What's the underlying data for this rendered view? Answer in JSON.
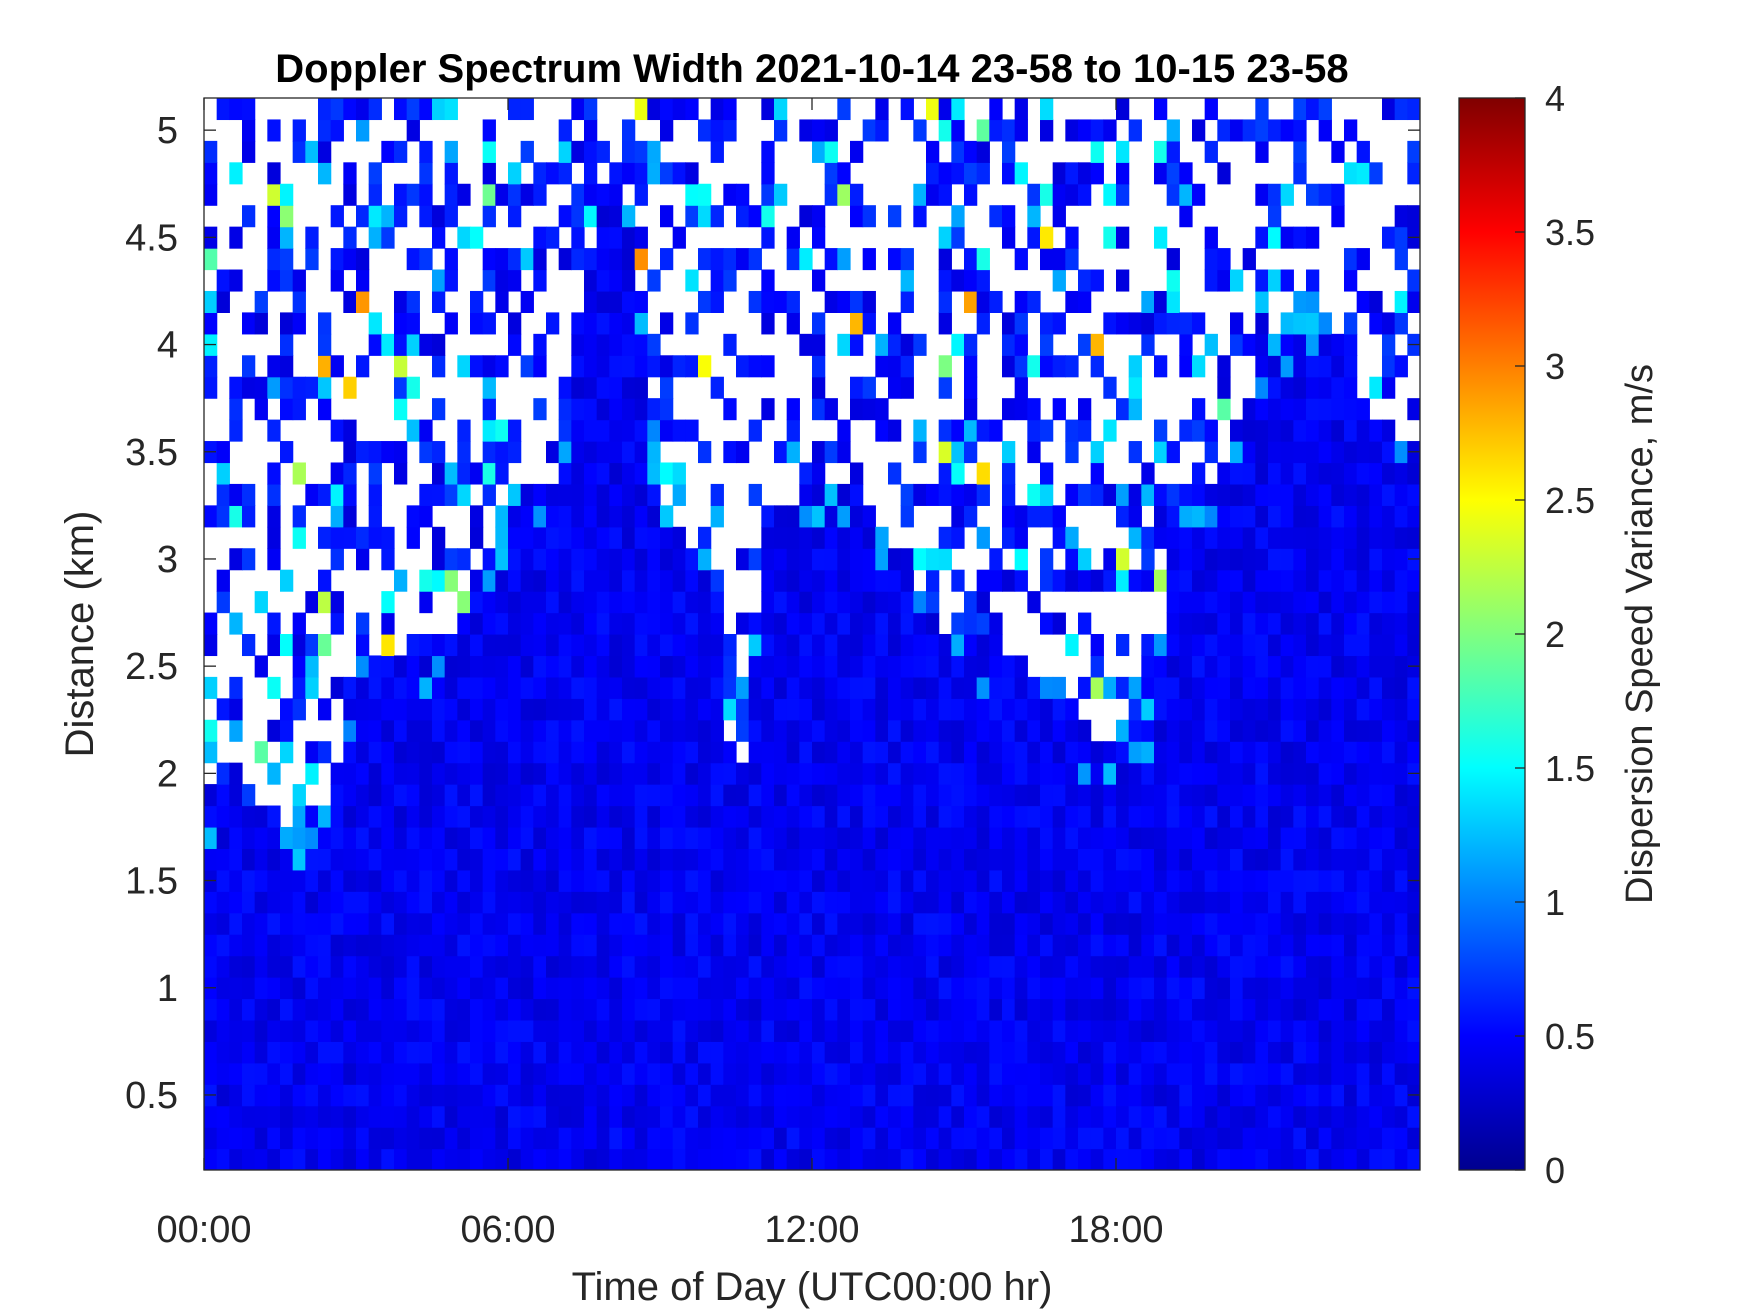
{
  "chart_data": {
    "type": "heatmap",
    "title": "Doppler Spectrum Width 2021-10-14 23-58 to 10-15 23-58",
    "xlabel": "Time of Day (UTC00:00 hr)",
    "ylabel": "Distance (km)",
    "colorbar_label": "Dispersion Speed Variance, m/s",
    "colormap": "jet",
    "xlim_hours": [
      0,
      24
    ],
    "ylim_km": [
      0.15,
      5.15
    ],
    "clim": [
      0,
      4
    ],
    "x_ticks": [
      {
        "value": 0,
        "label": "00:00"
      },
      {
        "value": 6,
        "label": "06:00"
      },
      {
        "value": 12,
        "label": "12:00"
      },
      {
        "value": 18,
        "label": "18:00"
      }
    ],
    "y_ticks": [
      {
        "value": 0.5,
        "label": "0.5"
      },
      {
        "value": 1,
        "label": "1"
      },
      {
        "value": 1.5,
        "label": "1.5"
      },
      {
        "value": 2,
        "label": "2"
      },
      {
        "value": 2.5,
        "label": "2.5"
      },
      {
        "value": 3,
        "label": "3"
      },
      {
        "value": 3.5,
        "label": "3.5"
      },
      {
        "value": 4,
        "label": "4"
      },
      {
        "value": 4.5,
        "label": "4.5"
      },
      {
        "value": 5,
        "label": "5"
      }
    ],
    "colorbar_ticks": [
      {
        "value": 0,
        "label": "0"
      },
      {
        "value": 0.5,
        "label": "0.5"
      },
      {
        "value": 1,
        "label": "1"
      },
      {
        "value": 1.5,
        "label": "1.5"
      },
      {
        "value": 2,
        "label": "2"
      },
      {
        "value": 2.5,
        "label": "2.5"
      },
      {
        "value": 3,
        "label": "3"
      },
      {
        "value": 3.5,
        "label": "3.5"
      },
      {
        "value": 4,
        "label": "4"
      }
    ],
    "time_grid_hours_step": 0.25,
    "range_grid_km_step": 0.1,
    "signal_top_km_by_hour": [
      [
        0,
        1.95
      ],
      [
        0.5,
        1.95
      ],
      [
        1,
        1.85
      ],
      [
        1.5,
        1.8
      ],
      [
        2,
        1.7
      ],
      [
        2.5,
        1.95
      ],
      [
        3,
        2.5
      ],
      [
        4,
        2.55
      ],
      [
        5,
        2.7
      ],
      [
        6,
        3.3
      ],
      [
        7,
        3.4
      ],
      [
        8,
        4.95
      ],
      [
        8.5,
        4.6
      ],
      [
        9,
        3.3
      ],
      [
        9.5,
        3.1
      ],
      [
        10,
        3.1
      ],
      [
        10.3,
        2.4
      ],
      [
        10.5,
        1.7
      ],
      [
        10.7,
        2.3
      ],
      [
        11,
        3.1
      ],
      [
        11.5,
        3.25
      ],
      [
        12,
        3.45
      ],
      [
        13,
        3.3
      ],
      [
        14,
        2.85
      ],
      [
        15,
        2.6
      ],
      [
        16,
        2.5
      ],
      [
        17,
        2.4
      ],
      [
        17.5,
        2.2
      ],
      [
        18,
        2.2
      ],
      [
        18.8,
        2.35
      ],
      [
        19,
        3.25
      ],
      [
        20,
        3.4
      ],
      [
        21,
        4.0
      ],
      [
        21.8,
        4.25
      ],
      [
        22.5,
        4.0
      ],
      [
        23,
        3.7
      ],
      [
        24,
        3.5
      ]
    ],
    "typical_width_m_s": 0.45
  }
}
